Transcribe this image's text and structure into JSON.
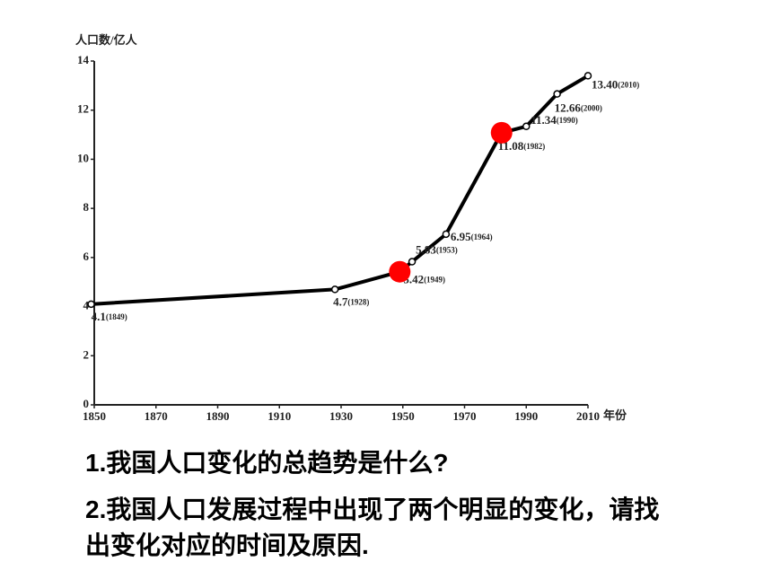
{
  "chart_data": {
    "type": "line",
    "y_label": "人口数/亿人",
    "x_label": "年份",
    "x": [
      1849,
      1928,
      1949,
      1953,
      1964,
      1982,
      1990,
      2000,
      2010
    ],
    "x_labels": [
      "(1849)",
      "(1928)",
      "(1949)",
      "(1953)",
      "(1964)",
      "(1982)",
      "(1990)",
      "(2000)",
      "(2010)"
    ],
    "values": [
      4.1,
      4.7,
      5.42,
      5.83,
      6.95,
      11.08,
      11.34,
      12.66,
      13.4
    ],
    "value_labels": [
      "4.1",
      "4.7",
      "5.42",
      "5.83",
      "6.95",
      "11.08",
      "11.34",
      "12.66",
      "13.40"
    ],
    "color": "#000000",
    "highlight": {
      "indices": [
        2,
        5
      ],
      "color": "#ff0000"
    },
    "xlim": [
      1850,
      2010
    ],
    "xticks": [
      1850,
      1870,
      1890,
      1910,
      1930,
      1950,
      1970,
      1990,
      2010
    ],
    "ylim": [
      0,
      14
    ],
    "yticks": [
      0,
      2,
      4,
      6,
      8,
      10,
      12,
      14
    ]
  },
  "questions": [
    "1.我国人口变化的总趋势是什么?",
    "2.我国人口发展过程中出现了两个明显的变化，请找出变化对应的时间及原因."
  ]
}
